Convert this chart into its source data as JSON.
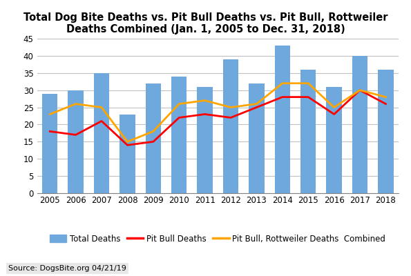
{
  "years": [
    2005,
    2006,
    2007,
    2008,
    2009,
    2010,
    2011,
    2012,
    2013,
    2014,
    2015,
    2016,
    2017,
    2018
  ],
  "total_deaths": [
    29,
    30,
    35,
    23,
    32,
    34,
    31,
    39,
    32,
    43,
    36,
    31,
    40,
    36
  ],
  "pit_bull_deaths": [
    18,
    17,
    21,
    14,
    15,
    22,
    23,
    22,
    25,
    28,
    28,
    23,
    30,
    26
  ],
  "pit_bull_rottweiler_deaths": [
    23,
    26,
    25,
    15,
    18,
    26,
    27,
    25,
    26,
    32,
    32,
    25,
    30,
    28
  ],
  "bar_color": "#6fa8dc",
  "pit_bull_color": "#ff0000",
  "pit_rottweiler_color": "#ffa500",
  "title": "Total Dog Bite Deaths vs. Pit Bull Deaths vs. Pit Bull, Rottweiler\nDeaths Combined (Jan. 1, 2005 to Dec. 31, 2018)",
  "xlabel": "",
  "ylabel": "",
  "ylim": [
    0,
    45
  ],
  "yticks": [
    0,
    5,
    10,
    15,
    20,
    25,
    30,
    35,
    40,
    45
  ],
  "legend_total": "Total Deaths",
  "legend_pit_bull": "Pit Bull Deaths",
  "legend_pit_rott": "Pit Bull, Rottweiler Deaths  Combined",
  "source_text": "Source: DogsBite.org 04/21/19",
  "title_fontsize": 10.5,
  "tick_fontsize": 8.5,
  "legend_fontsize": 8.5,
  "source_fontsize": 8,
  "background_color": "#ffffff",
  "grid_color": "#c0c0c0"
}
